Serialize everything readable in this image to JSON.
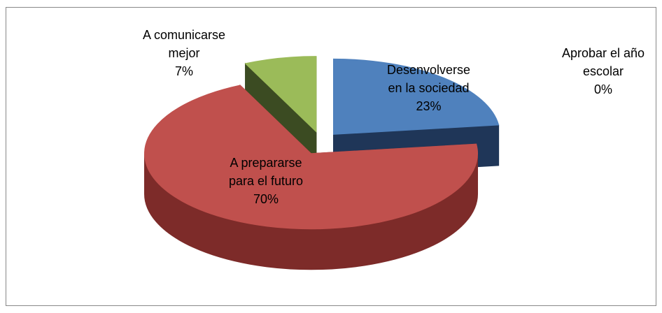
{
  "chart_data": {
    "type": "pie",
    "categories": [
      "Desenvolverse en la sociedad",
      "Aprobar el año escolar",
      "A prepararse para el futuro",
      "A comunicarse mejor"
    ],
    "values": [
      23,
      0,
      70,
      7
    ],
    "value_labels": [
      "23%",
      "0%",
      "70%",
      "7%"
    ],
    "colors": [
      "#4f81bd",
      "#8064a2",
      "#c0504d",
      "#9bbb59"
    ],
    "side_colors": [
      "#1f3658",
      "#3e2f55",
      "#7d2b29",
      "#3b4b22"
    ]
  }
}
